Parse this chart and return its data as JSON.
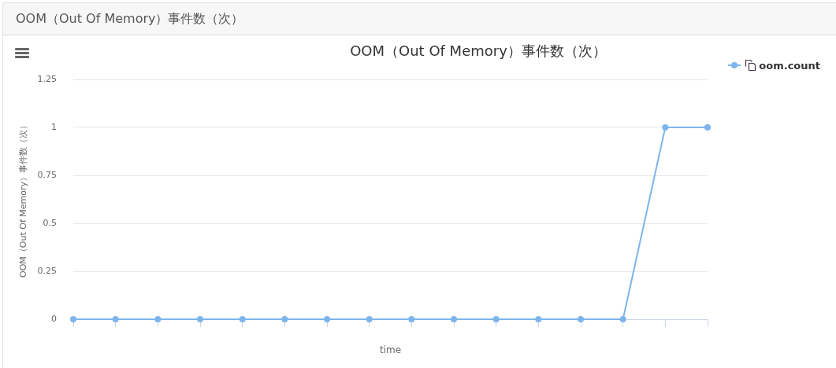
{
  "chart_data": {
    "type": "line",
    "title": "OOM（Out Of Memory）事件数（次）",
    "xlabel": "time",
    "ylabel": "OOM（Out Of Memory）事件数（次）",
    "categories": [
      null,
      null,
      null,
      null,
      null,
      null,
      null,
      null,
      null,
      null,
      null,
      null,
      null,
      null,
      null,
      null
    ],
    "series": [
      {
        "name": "oom.count",
        "color": "#7cb5ec",
        "values": [
          0,
          0,
          0,
          0,
          0,
          0,
          0,
          0,
          0,
          0,
          0,
          0,
          0,
          0,
          1,
          1
        ]
      }
    ],
    "ylim": [
      0,
      1.25
    ],
    "yticks": [
      0,
      0.25,
      0.5,
      0.75,
      1,
      1.25
    ],
    "grid": "y",
    "legend": "top right",
    "tick_labels": "y",
    "marker": "circle",
    "line_style": "solid"
  }
}
